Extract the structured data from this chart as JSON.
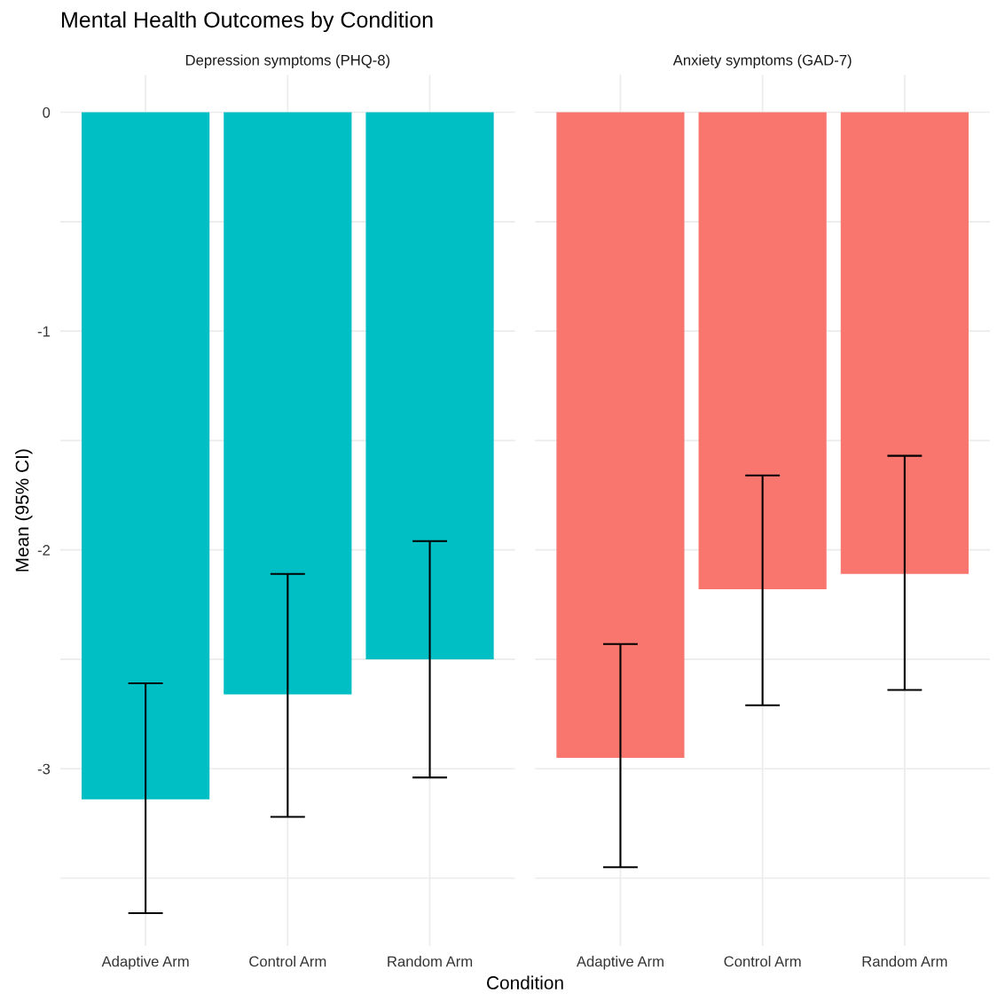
{
  "chart_data": [
    {
      "type": "bar",
      "title": "Mental Health Outcomes by Condition",
      "subtitle": "Depression symptoms (PHQ-8)",
      "xlabel": "Condition",
      "ylabel": "Mean (95% CI)",
      "categories": [
        "Adaptive Arm",
        "Control Arm",
        "Random Arm"
      ],
      "series": [
        {
          "color": "#00bfc4",
          "values": [
            -3.14,
            -2.66,
            -2.5
          ],
          "errors": [
            [
              -3.66,
              -2.61
            ],
            [
              -3.22,
              -2.11
            ],
            [
              -3.04,
              -1.96
            ]
          ]
        }
      ],
      "ylim": [
        -3.81,
        0.17
      ],
      "yticks": [
        {
          "value": -3.5,
          "label": null
        },
        -3,
        {
          "value": -2.5,
          "label": null
        },
        -2,
        {
          "value": -1.5,
          "label": null
        },
        -1,
        {
          "value": -0.5,
          "label": null
        },
        0
      ],
      "grid": true,
      "legend": false
    },
    {
      "type": "bar",
      "subtitle": "Anxiety symptoms (GAD-7)",
      "categories": [
        "Adaptive Arm",
        "Control Arm",
        "Random Arm"
      ],
      "series": [
        {
          "color": "#f8766d",
          "values": [
            -2.95,
            -2.18,
            -2.11
          ],
          "errors": [
            [
              -3.45,
              -2.43
            ],
            [
              -2.71,
              -1.66
            ],
            [
              -2.64,
              -1.57
            ]
          ]
        }
      ],
      "ylim": [
        -3.81,
        0.17
      ],
      "yticks": [
        {
          "value": -3.5,
          "label": null
        },
        -3,
        {
          "value": -2.5,
          "label": null
        },
        -2,
        {
          "value": -1.5,
          "label": null
        },
        -1,
        {
          "value": -0.5,
          "label": null
        },
        0
      ],
      "tick_labels": "x",
      "grid": true,
      "legend": false
    }
  ]
}
